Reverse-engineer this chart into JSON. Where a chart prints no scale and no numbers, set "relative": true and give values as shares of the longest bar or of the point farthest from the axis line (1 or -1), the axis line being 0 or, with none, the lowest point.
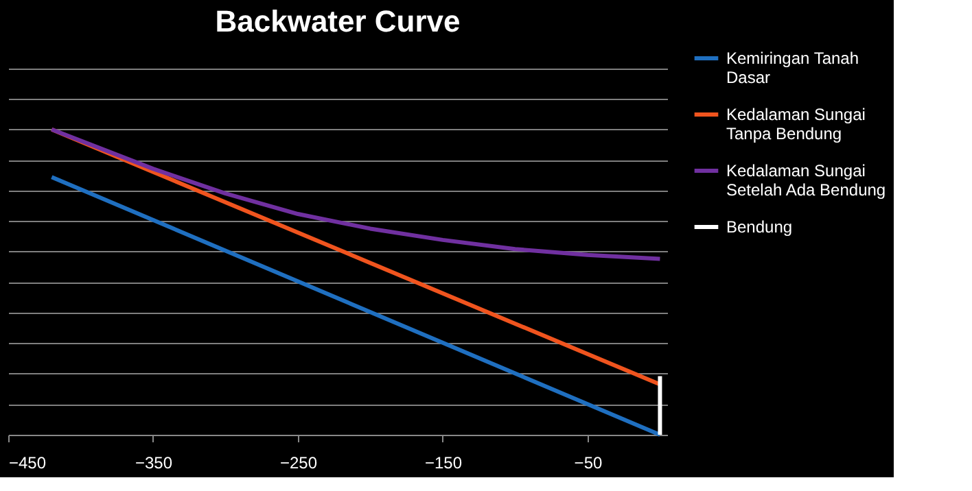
{
  "chart_data": {
    "type": "line",
    "title": "Backwater Curve",
    "relative": true,
    "xlim": [
      -450,
      5
    ],
    "xticks": [
      -450,
      -350,
      -250,
      -150,
      -50
    ],
    "grid": "y",
    "legend": "right",
    "marker": "none",
    "line_style": "solid",
    "series": [
      {
        "name": "Kemiringan Tanah Dasar",
        "color": "#1f6fc0",
        "x": [
          -420,
          0
        ],
        "values": [
          0.844,
          0
        ]
      },
      {
        "name": "Kedalaman Sungai Tanpa Bendung",
        "color": "#f0541e",
        "x": [
          -420,
          0
        ],
        "values": [
          1,
          0.165
        ]
      },
      {
        "name": "Kedalaman Sungai Setelah Ada Bendung",
        "color": "#7030a0",
        "x": [
          -420,
          -350,
          -300,
          -250,
          -200,
          -150,
          -100,
          -50,
          0
        ],
        "values": [
          1,
          0.871,
          0.79,
          0.723,
          0.675,
          0.638,
          0.608,
          0.589,
          0.576
        ]
      },
      {
        "name": "Bendung",
        "color": "#ffffff",
        "x": [
          0,
          0
        ],
        "values": [
          0,
          0.192
        ]
      }
    ]
  }
}
